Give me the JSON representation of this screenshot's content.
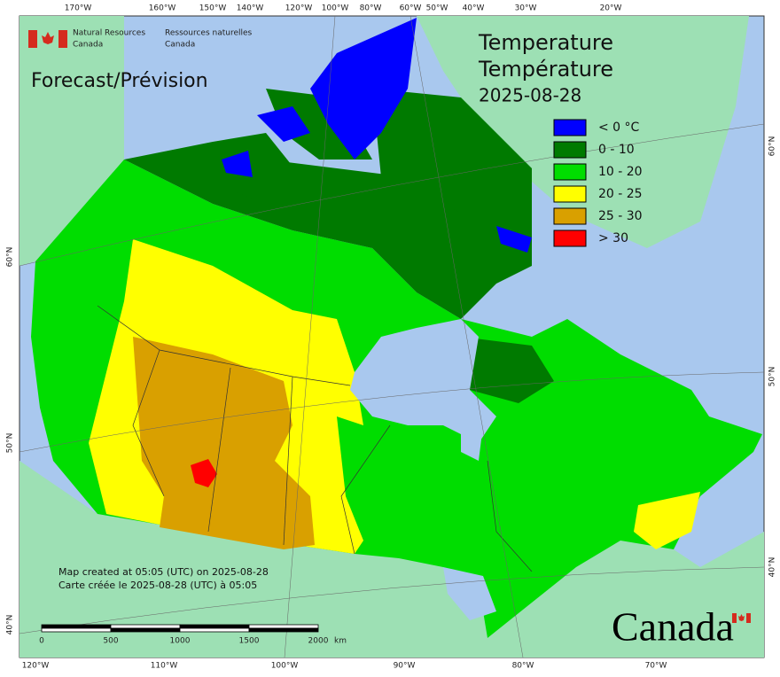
{
  "header": {
    "org_en_1": "Natural Resources",
    "org_en_2": "Canada",
    "org_fr_1": "Ressources naturelles",
    "org_fr_2": "Canada"
  },
  "product": "Forecast/Prévision",
  "title": {
    "en": "Temperature",
    "fr": "Température",
    "date": "2025-08-28"
  },
  "legend": [
    {
      "label": "< 0 °C",
      "color": "#0000ff"
    },
    {
      "label": "0 - 10",
      "color": "#007a00"
    },
    {
      "label": "10 - 20",
      "color": "#00dd00"
    },
    {
      "label": "20 - 25",
      "color": "#ffff00"
    },
    {
      "label": "25 - 30",
      "color": "#d9a000"
    },
    {
      "label": "> 30",
      "color": "#ff0000"
    }
  ],
  "top_longitudes": [
    "170°W",
    "160°W",
    "150°W",
    "140°W",
    "120°W",
    "100°W",
    "80°W",
    "60°W",
    "50°W",
    "40°W",
    "30°W",
    "20°W"
  ],
  "bottom_longitudes": [
    "120°W",
    "110°W",
    "100°W",
    "90°W",
    "80°W",
    "70°W"
  ],
  "left_latitudes": [
    "60°N",
    "50°N",
    "40°N"
  ],
  "right_latitudes": [
    "60°N",
    "50°N",
    "40°N"
  ],
  "footer": {
    "created_en": "Map created at 05:05 (UTC) on 2025-08-28",
    "created_fr": "Carte créée le 2025-08-28 (UTC) à 05:05"
  },
  "scale_bar": {
    "ticks": [
      "0",
      "500",
      "1000",
      "1500",
      "2000"
    ],
    "unit": "km"
  },
  "wordmark": "Canada"
}
